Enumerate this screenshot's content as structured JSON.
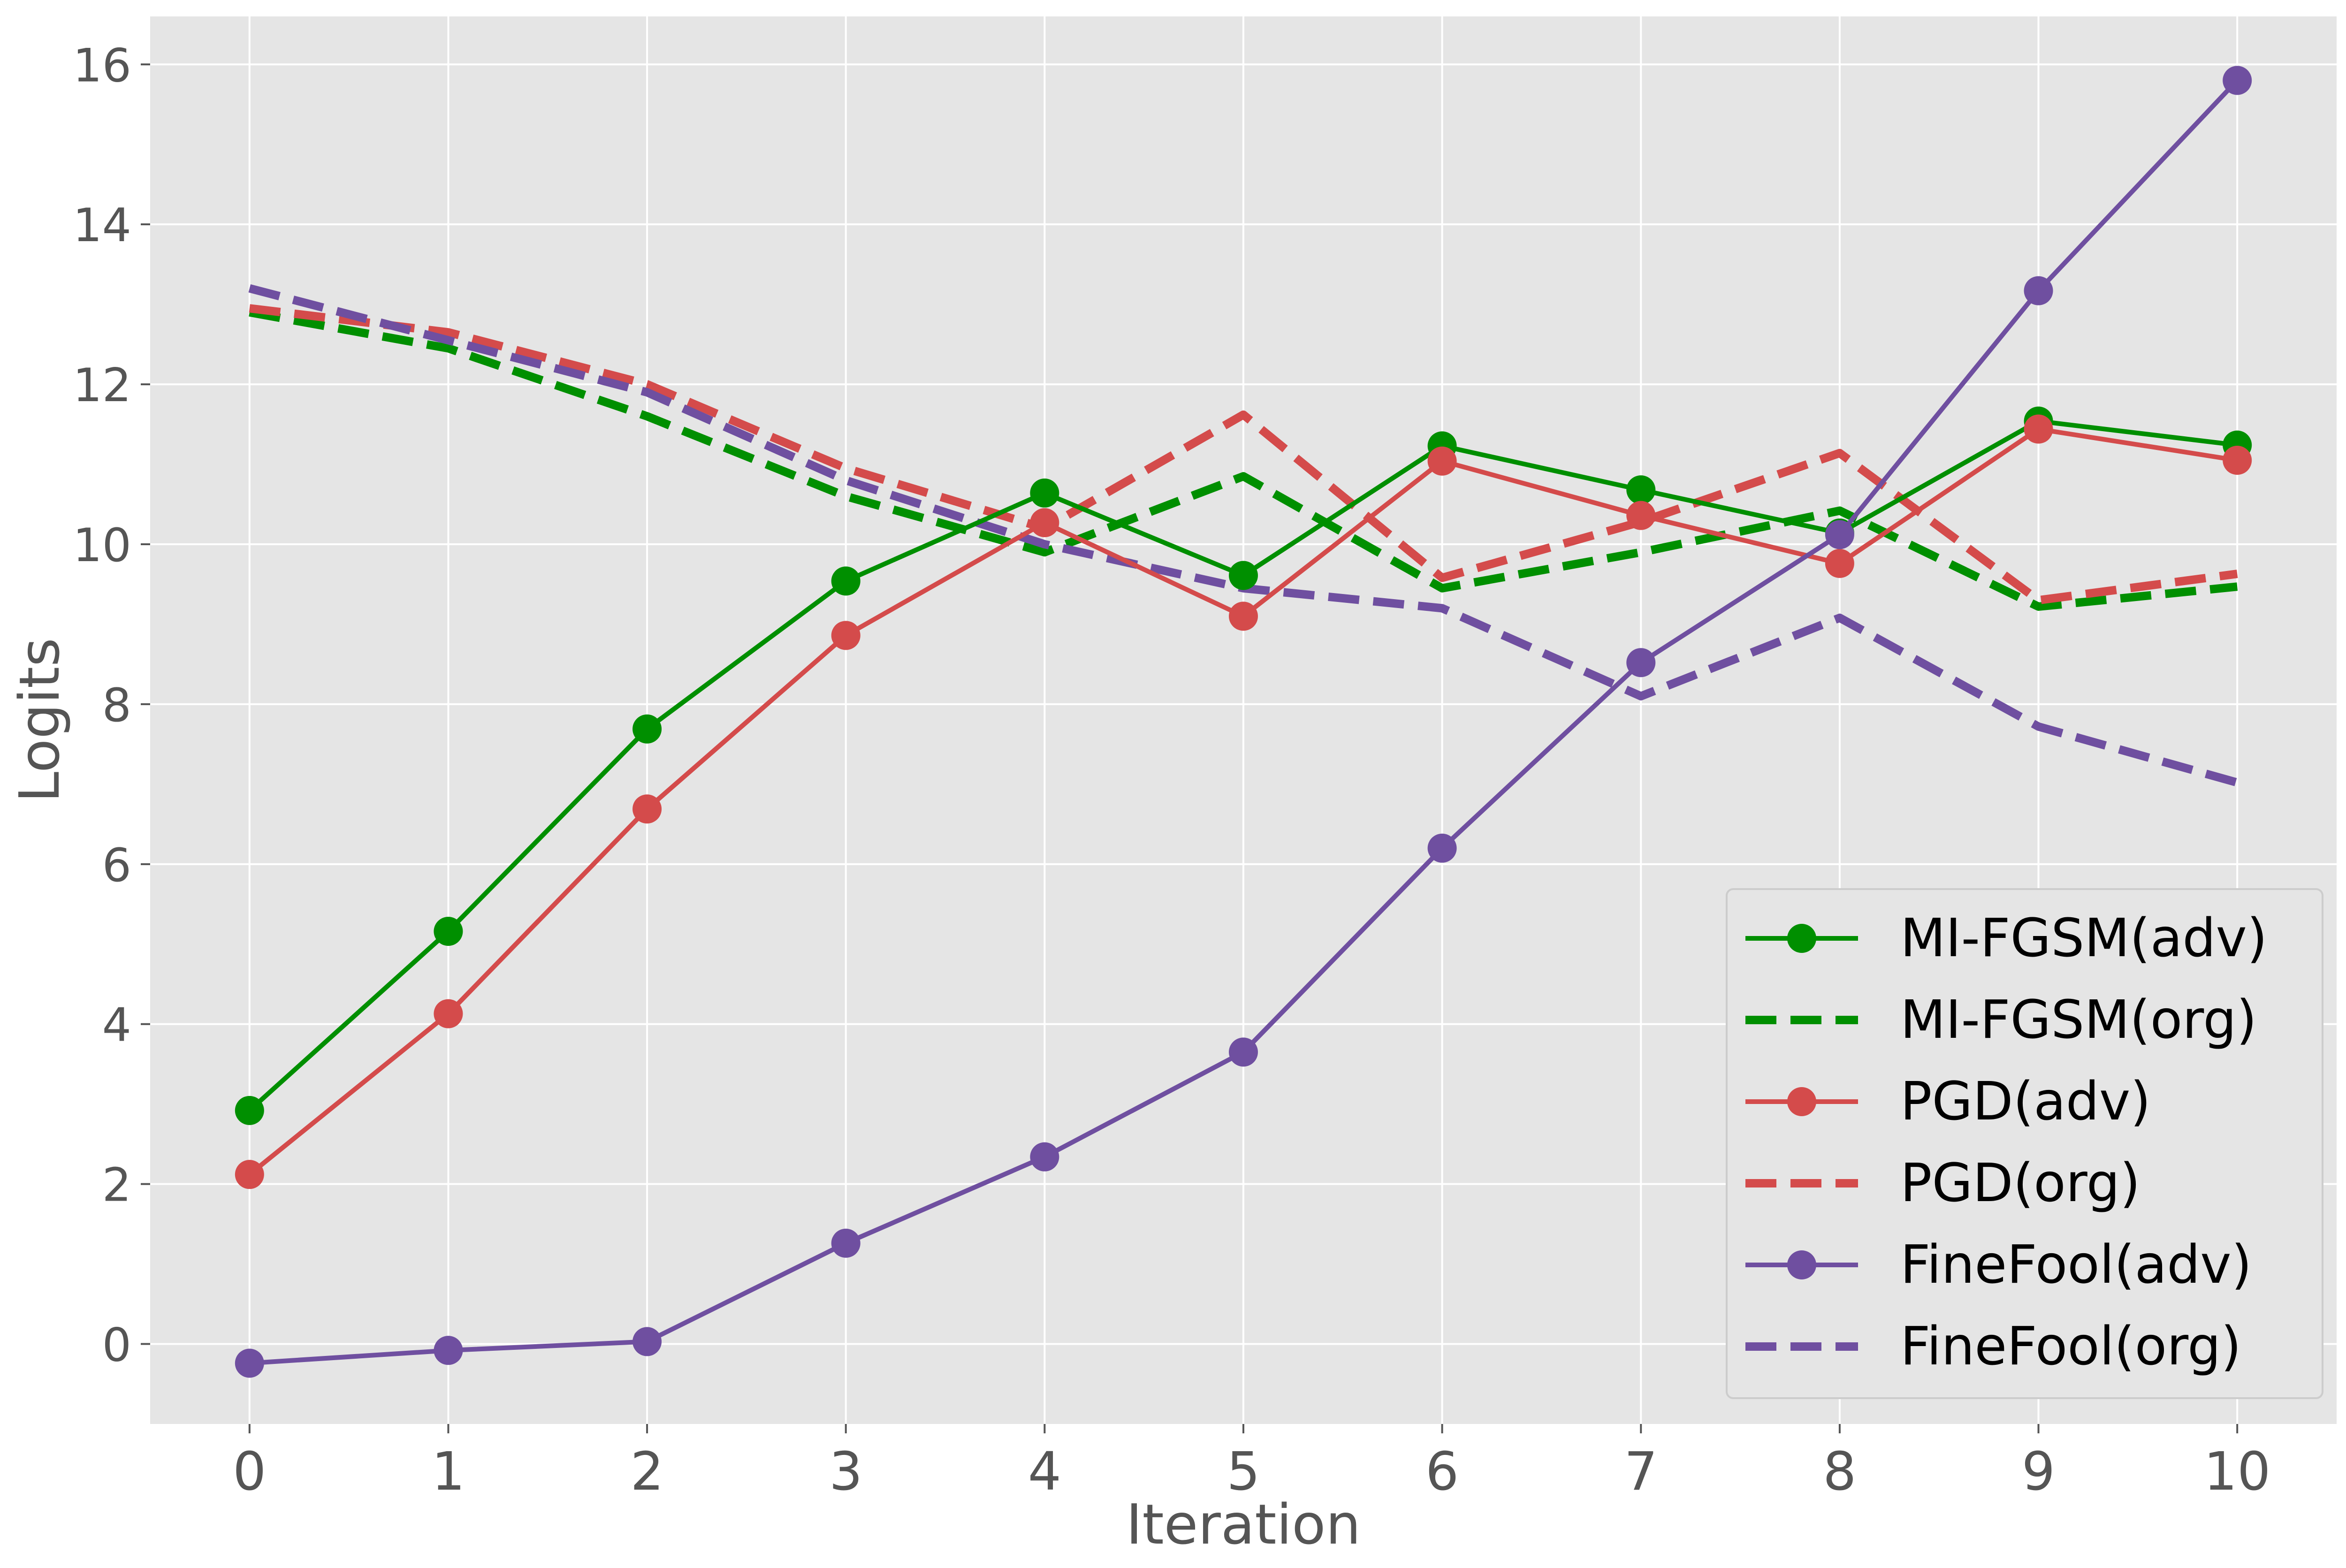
{
  "chart_data": {
    "type": "line",
    "title": "",
    "xlabel": "Iteration",
    "ylabel": "Logits",
    "x": [
      0,
      1,
      2,
      3,
      4,
      5,
      6,
      7,
      8,
      9,
      10
    ],
    "xticks": [
      "0",
      "1",
      "2",
      "3",
      "4",
      "5",
      "6",
      "7",
      "8",
      "9",
      "10"
    ],
    "yticks": [
      "0",
      "2",
      "4",
      "6",
      "8",
      "10",
      "12",
      "14",
      "16"
    ],
    "xlim": [
      -0.5,
      10.5
    ],
    "ylim": [
      -1.0,
      16.6
    ],
    "grid": true,
    "legend_position": "lower-right",
    "series": [
      {
        "name": "MI-FGSM(adv)",
        "color": "#008f00",
        "style": "solid",
        "marker": true,
        "values": [
          2.92,
          5.16,
          7.69,
          9.54,
          10.64,
          9.61,
          11.23,
          10.68,
          10.14,
          11.54,
          11.24
        ]
      },
      {
        "name": "MI-FGSM(org)",
        "color": "#008f00",
        "style": "dashed",
        "marker": false,
        "values": [
          12.9,
          12.45,
          11.6,
          10.6,
          9.9,
          10.85,
          9.45,
          9.9,
          10.42,
          9.22,
          9.47
        ]
      },
      {
        "name": "PGD(adv)",
        "color": "#d44b4b",
        "style": "solid",
        "marker": true,
        "values": [
          2.12,
          4.13,
          6.69,
          8.86,
          10.27,
          9.1,
          11.04,
          10.36,
          9.76,
          11.44,
          11.05
        ]
      },
      {
        "name": "PGD(org)",
        "color": "#d44b4b",
        "style": "dashed",
        "marker": false,
        "values": [
          12.95,
          12.65,
          12.0,
          10.95,
          10.2,
          11.62,
          9.58,
          10.28,
          11.14,
          9.3,
          9.63
        ]
      },
      {
        "name": "FineFool(adv)",
        "color": "#6f4fa0",
        "style": "solid",
        "marker": true,
        "values": [
          -0.24,
          -0.08,
          0.03,
          1.26,
          2.34,
          3.65,
          6.2,
          8.52,
          10.12,
          13.17,
          15.8
        ]
      },
      {
        "name": "FineFool(org)",
        "color": "#6f4fa0",
        "style": "dashed",
        "marker": false,
        "values": [
          13.2,
          12.55,
          11.9,
          10.8,
          10.0,
          9.45,
          9.2,
          8.1,
          9.08,
          7.72,
          7.02
        ]
      }
    ]
  }
}
